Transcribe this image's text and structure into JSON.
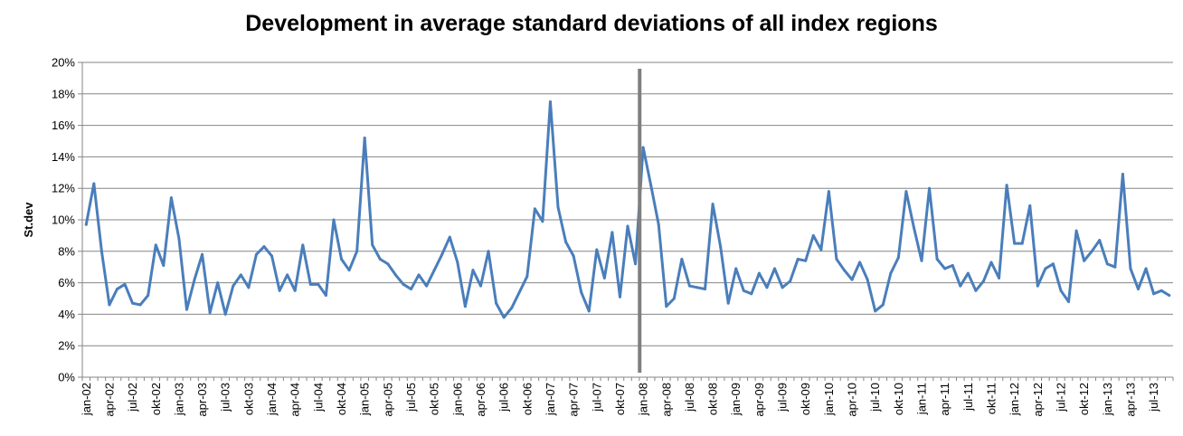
{
  "chart_data": {
    "type": "line",
    "title": "Development in average standard deviations of all index regions",
    "xlabel": "",
    "ylabel": "St.dev",
    "ylim": [
      0,
      0.2
    ],
    "ytick_labels": [
      "0%",
      "2%",
      "4%",
      "6%",
      "8%",
      "10%",
      "12%",
      "14%",
      "16%",
      "18%",
      "20%"
    ],
    "grid": "horizontal",
    "legend": "none",
    "x": [
      "jan-02",
      "feb-02",
      "mar-02",
      "apr-02",
      "mai-02",
      "jun-02",
      "jul-02",
      "aug-02",
      "sep-02",
      "okt-02",
      "nov-02",
      "des-02",
      "jan-03",
      "feb-03",
      "mar-03",
      "apr-03",
      "mai-03",
      "jun-03",
      "jul-03",
      "aug-03",
      "sep-03",
      "okt-03",
      "nov-03",
      "des-03",
      "jan-04",
      "feb-04",
      "mar-04",
      "apr-04",
      "mai-04",
      "jun-04",
      "jul-04",
      "aug-04",
      "sep-04",
      "okt-04",
      "nov-04",
      "des-04",
      "jan-05",
      "feb-05",
      "mar-05",
      "apr-05",
      "mai-05",
      "jun-05",
      "jul-05",
      "aug-05",
      "sep-05",
      "okt-05",
      "nov-05",
      "des-05",
      "jan-06",
      "feb-06",
      "mar-06",
      "apr-06",
      "mai-06",
      "jun-06",
      "jul-06",
      "aug-06",
      "sep-06",
      "okt-06",
      "nov-06",
      "des-06",
      "jan-07",
      "feb-07",
      "mar-07",
      "apr-07",
      "mai-07",
      "jun-07",
      "jul-07",
      "aug-07",
      "sep-07",
      "okt-07",
      "nov-07",
      "des-07",
      "jan-08",
      "feb-08",
      "mar-08",
      "apr-08",
      "mai-08",
      "jun-08",
      "jul-08",
      "aug-08",
      "sep-08",
      "okt-08",
      "nov-08",
      "des-08",
      "jan-09",
      "feb-09",
      "mar-09",
      "apr-09",
      "mai-09",
      "jun-09",
      "jul-09",
      "aug-09",
      "sep-09",
      "okt-09",
      "nov-09",
      "des-09",
      "jan-10",
      "feb-10",
      "mar-10",
      "apr-10",
      "mai-10",
      "jun-10",
      "jul-10",
      "aug-10",
      "sep-10",
      "okt-10",
      "nov-10",
      "des-10",
      "jan-11",
      "feb-11",
      "mar-11",
      "apr-11",
      "mai-11",
      "jun-11",
      "jul-11",
      "aug-11",
      "sep-11",
      "okt-11",
      "nov-11",
      "des-11",
      "jan-12",
      "feb-12",
      "mar-12",
      "apr-12",
      "mai-12",
      "jun-12",
      "jul-12",
      "aug-12",
      "sep-12",
      "okt-12",
      "nov-12",
      "des-12",
      "jan-13",
      "feb-13",
      "mar-13",
      "apr-13",
      "mai-13",
      "jun-13",
      "jul-13",
      "aug-13",
      "sep-13"
    ],
    "x_tick_labels": [
      "jan-02",
      "apr-02",
      "jul-02",
      "okt-02",
      "jan-03",
      "apr-03",
      "jul-03",
      "okt-03",
      "jan-04",
      "apr-04",
      "jul-04",
      "okt-04",
      "jan-05",
      "apr-05",
      "jul-05",
      "okt-05",
      "jan-06",
      "apr-06",
      "jul-06",
      "okt-06",
      "jan-07",
      "apr-07",
      "jul-07",
      "okt-07",
      "jan-08",
      "apr-08",
      "jul-08",
      "okt-08",
      "jan-09",
      "apr-09",
      "jul-09",
      "okt-09",
      "jan-10",
      "apr-10",
      "jul-10",
      "okt-10",
      "jan-11",
      "apr-11",
      "jul-11",
      "okt-11",
      "jan-12",
      "apr-12",
      "jul-12",
      "okt-12",
      "jan-13",
      "apr-13",
      "jul-13"
    ],
    "series": [
      {
        "values": [
          0.097,
          0.123,
          0.08,
          0.046,
          0.056,
          0.059,
          0.047,
          0.046,
          0.052,
          0.084,
          0.071,
          0.114,
          0.088,
          0.043,
          0.062,
          0.078,
          0.041,
          0.06,
          0.04,
          0.058,
          0.065,
          0.057,
          0.078,
          0.083,
          0.077,
          0.055,
          0.065,
          0.055,
          0.084,
          0.059,
          0.059,
          0.052,
          0.1,
          0.075,
          0.068,
          0.08,
          0.152,
          0.084,
          0.075,
          0.072,
          0.065,
          0.059,
          0.056,
          0.065,
          0.058,
          0.068,
          0.078,
          0.089,
          0.073,
          0.045,
          0.068,
          0.058,
          0.08,
          0.047,
          0.038,
          0.044,
          0.054,
          0.064,
          0.107,
          0.099,
          0.175,
          0.108,
          0.086,
          0.077,
          0.054,
          0.042,
          0.081,
          0.063,
          0.092,
          0.051,
          0.096,
          0.072,
          0.146,
          0.122,
          0.097,
          0.045,
          0.05,
          0.075,
          0.058,
          0.057,
          0.056,
          0.11,
          0.083,
          0.047,
          0.069,
          0.055,
          0.053,
          0.066,
          0.057,
          0.069,
          0.057,
          0.061,
          0.075,
          0.074,
          0.09,
          0.081,
          0.118,
          0.075,
          0.068,
          0.062,
          0.073,
          0.062,
          0.042,
          0.046,
          0.066,
          0.076,
          0.118,
          0.095,
          0.074,
          0.12,
          0.075,
          0.069,
          0.071,
          0.058,
          0.066,
          0.055,
          0.061,
          0.073,
          0.063,
          0.122,
          0.085,
          0.085,
          0.109,
          0.058,
          0.069,
          0.072,
          0.055,
          0.048,
          0.093,
          0.074,
          0.08,
          0.087,
          0.072,
          0.07,
          0.129,
          0.069,
          0.056,
          0.069,
          0.053,
          0.055,
          0.052
        ]
      }
    ],
    "colors": {
      "line": "#4a7ebb",
      "marker_line": "#7f7f7f",
      "grid": "#868686",
      "axis": "#868686"
    },
    "annotations": [
      {
        "type": "vertical-line",
        "at": "des-07"
      }
    ]
  }
}
